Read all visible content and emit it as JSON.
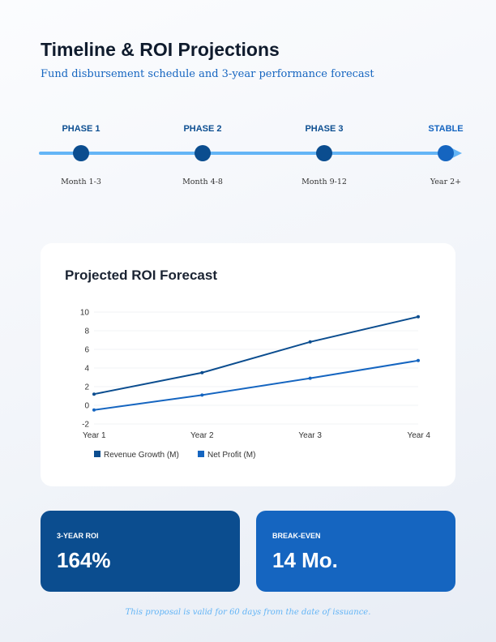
{
  "header": {
    "title": "Timeline & ROI Projections",
    "subtitle": "Fund disbursement schedule and 3-year performance forecast"
  },
  "timeline": [
    {
      "label": "PHASE 1",
      "period": "Month 1-3"
    },
    {
      "label": "PHASE 2",
      "period": "Month 4-8"
    },
    {
      "label": "PHASE 3",
      "period": "Month 9-12"
    },
    {
      "label": "STABLE",
      "period": "Year 2+"
    }
  ],
  "chart_title": "Projected ROI Forecast",
  "chart_data": {
    "type": "line",
    "categories": [
      "Year 1",
      "Year 2",
      "Year 3",
      "Year 4"
    ],
    "ylim": [
      -2,
      10
    ],
    "yticks": [
      10,
      8,
      6,
      4,
      2,
      0,
      -2
    ],
    "grid": true,
    "legend": "bottom-left",
    "series": [
      {
        "name": "Revenue Growth (M)",
        "values": [
          1.2,
          3.5,
          6.8,
          9.5
        ],
        "color": "#0b4d8f"
      },
      {
        "name": "Net Profit (M)",
        "values": [
          -0.5,
          1.1,
          2.9,
          4.8
        ],
        "color": "#1565c0"
      }
    ]
  },
  "kpis": [
    {
      "label": "3-YEAR ROI",
      "value": "164%",
      "color": "#0b4d8f"
    },
    {
      "label": "BREAK-EVEN",
      "value": "14 Mo.",
      "color": "#1565c0"
    }
  ],
  "footer": "This proposal is valid for 60 days from the date of issuance."
}
